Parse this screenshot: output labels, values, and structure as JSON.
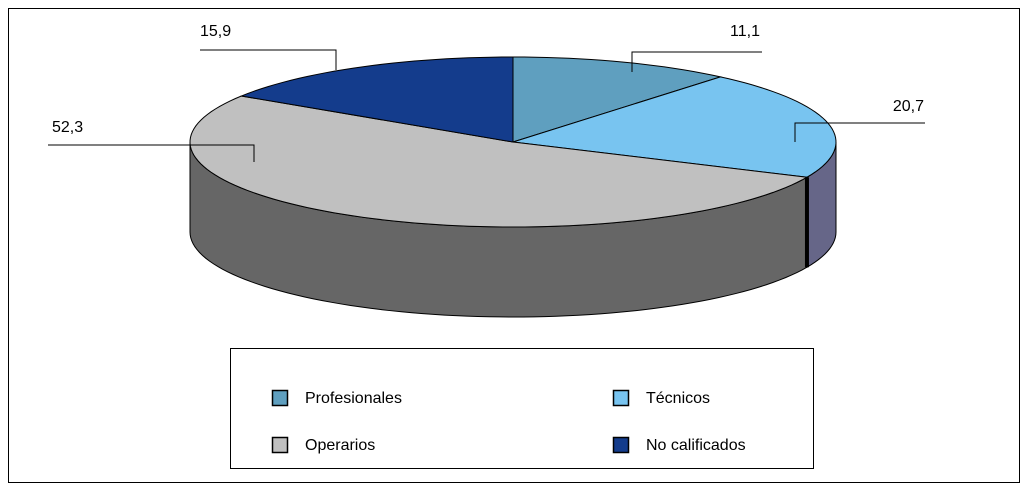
{
  "chart_data": {
    "type": "pie",
    "categories": [
      "Profesionales",
      "Técnicos",
      "Operarios",
      "No calificados"
    ],
    "values": [
      11.1,
      20.7,
      52.3,
      15.9
    ],
    "value_labels": [
      "11,1",
      "20,7",
      "52,3",
      "15,9"
    ],
    "colors": [
      "#5f9fbf",
      "#78c4f0",
      "#c0c0c0",
      "#143c8c"
    ],
    "side_colors": [
      "#3f6f8f",
      "#666688",
      "#666666",
      "#0c2a66"
    ],
    "legend": "bottom"
  }
}
